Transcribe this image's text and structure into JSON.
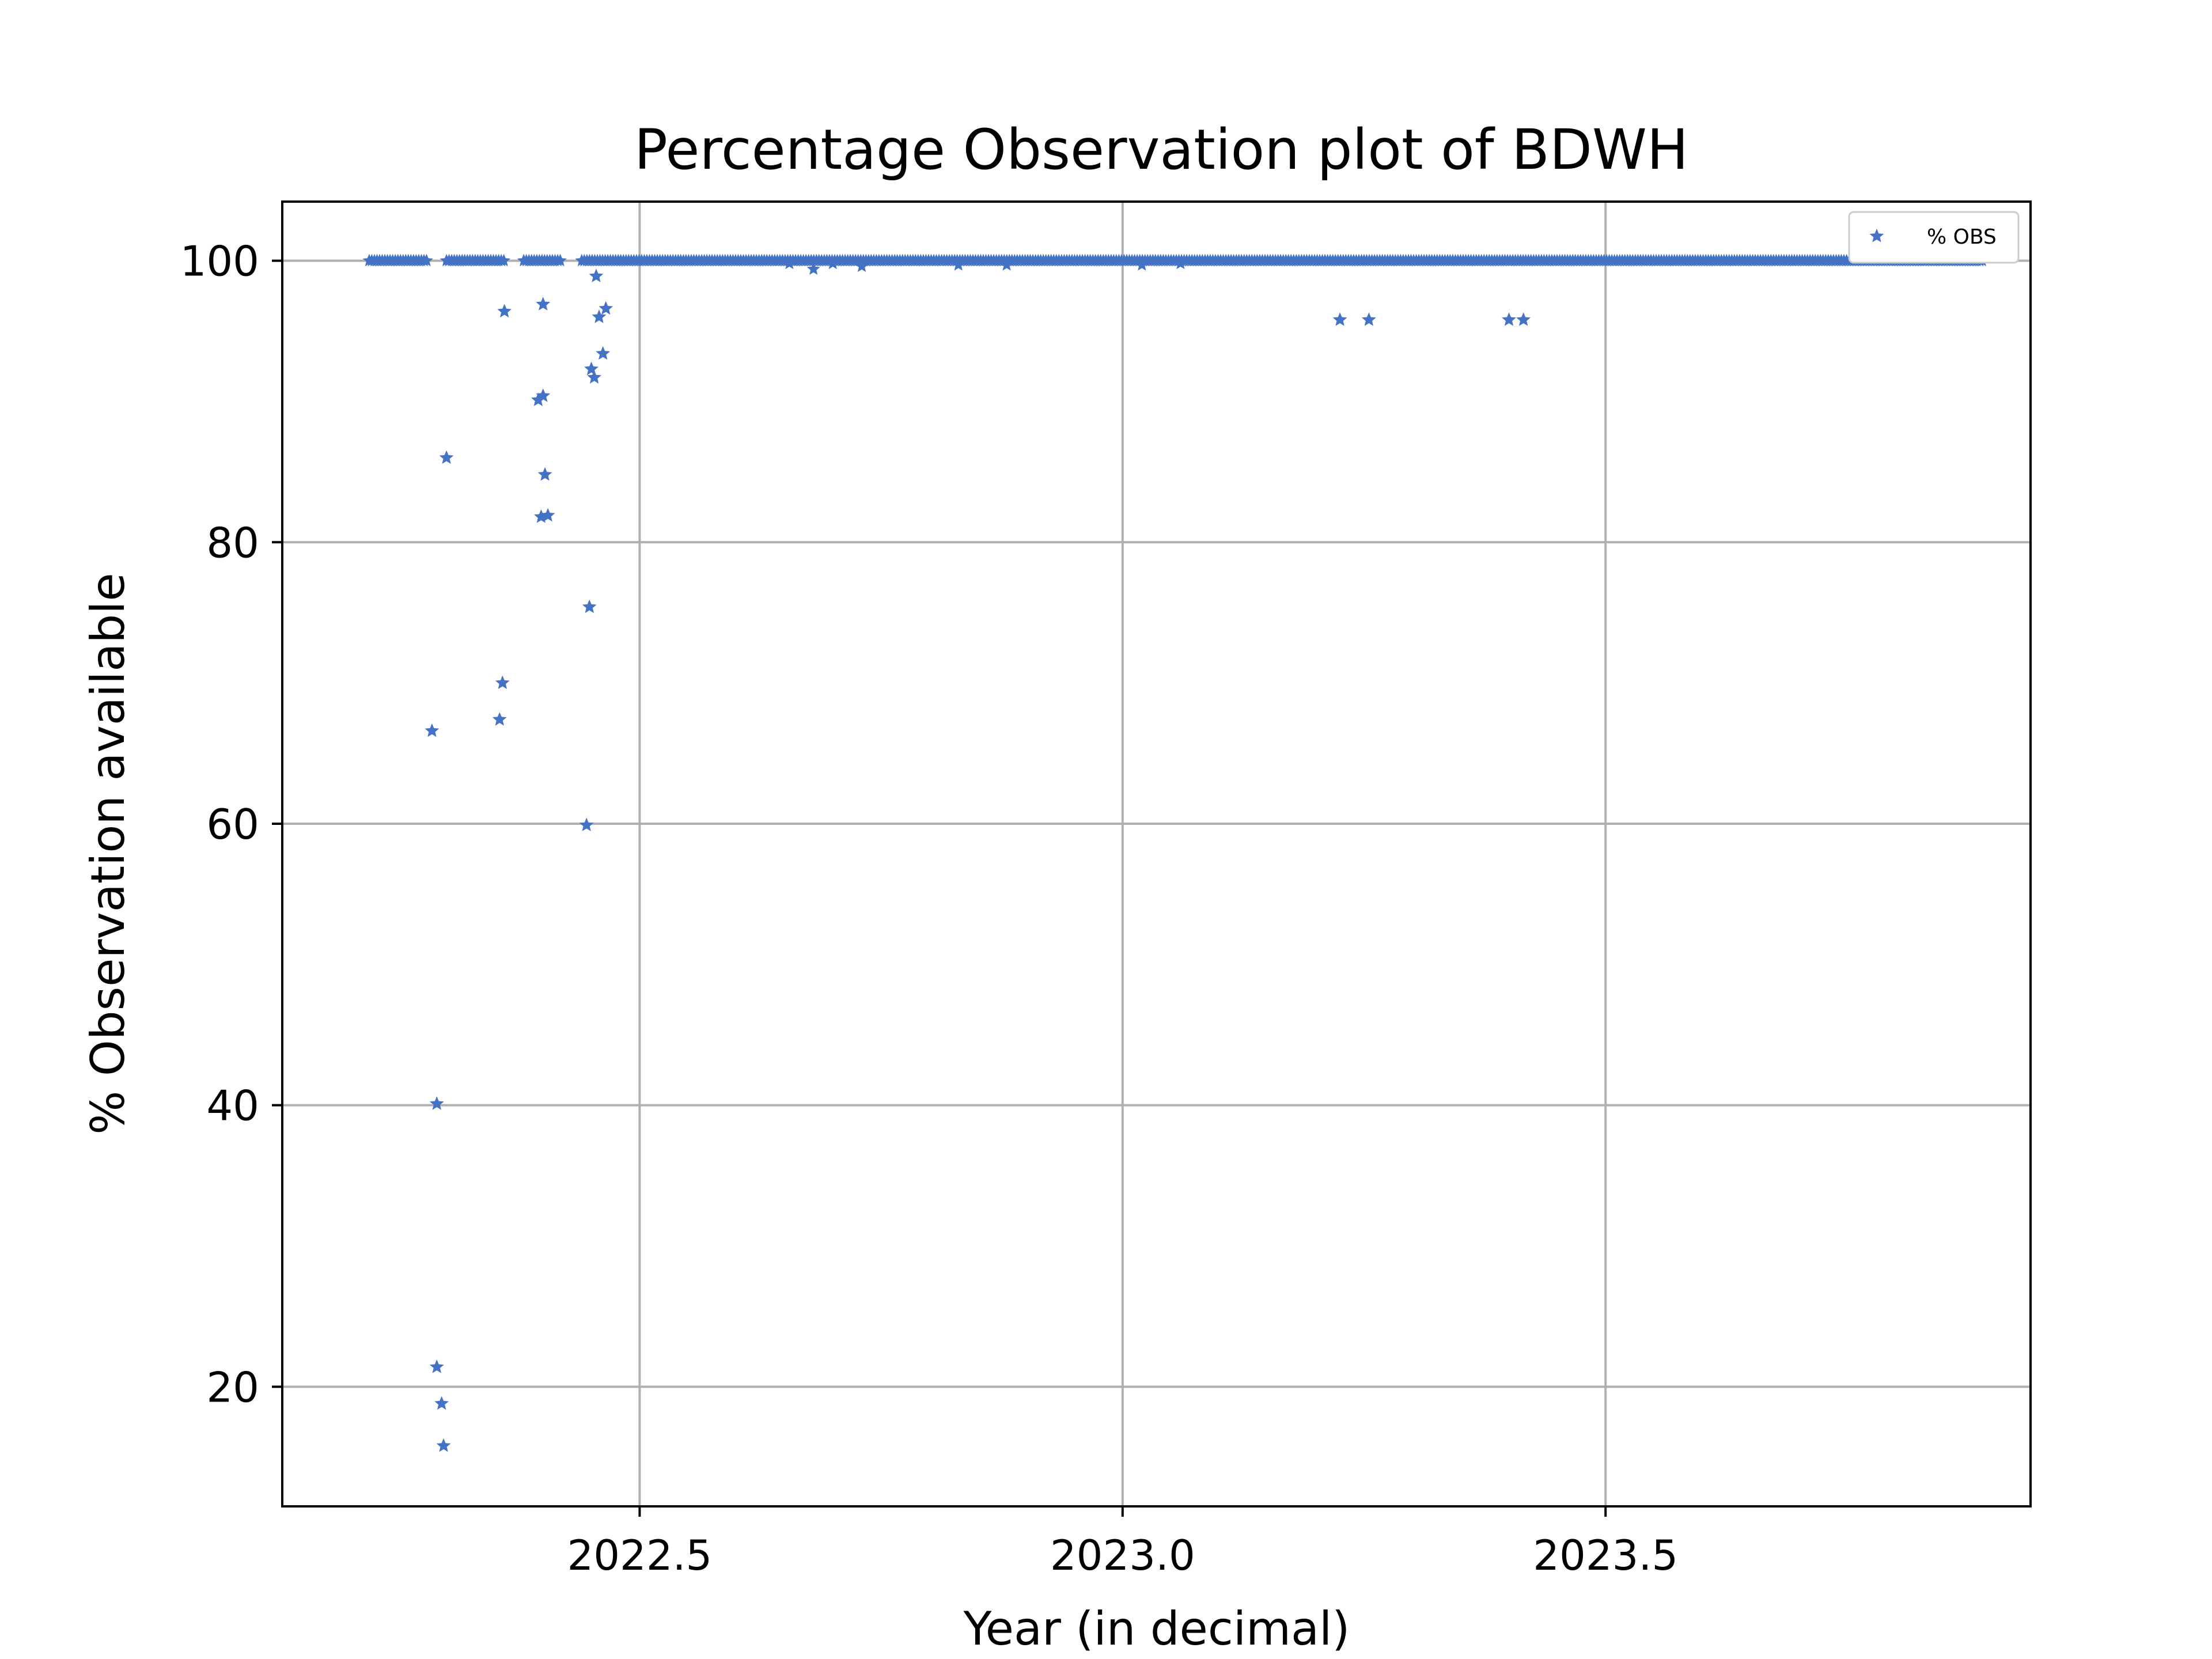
{
  "chart_data": {
    "type": "scatter",
    "title": "Percentage Observation plot of BDWH",
    "xlabel": "Year (in decimal)",
    "ylabel": "% Observation available",
    "xlim": [
      2022.13,
      2023.94
    ],
    "ylim": [
      11.5,
      104.2
    ],
    "xticks": [
      2022.5,
      2023.0,
      2023.5
    ],
    "xtick_labels": [
      "2022.5",
      "2023.0",
      "2023.5"
    ],
    "yticks": [
      20,
      40,
      60,
      80,
      100
    ],
    "ytick_labels": [
      "20",
      "40",
      "60",
      "80",
      "100"
    ],
    "grid": true,
    "legend_position": "top-right",
    "marker": "star",
    "series": [
      {
        "name": "% OBS",
        "color": "#4472c4",
        "dense_band": {
          "segments": [
            [
              2022.22,
              2022.28
            ],
            [
              2022.3,
              2022.36
            ],
            [
              2022.38,
              2022.42
            ],
            [
              2022.44,
              2023.89
            ]
          ],
          "y": 100,
          "step": 0.0027
        },
        "dips": [
          {
            "x": 2022.655,
            "y": 99.8
          },
          {
            "x": 2022.68,
            "y": 99.4
          },
          {
            "x": 2022.7,
            "y": 99.8
          },
          {
            "x": 2022.73,
            "y": 99.6
          },
          {
            "x": 2022.83,
            "y": 99.7
          },
          {
            "x": 2022.88,
            "y": 99.7
          },
          {
            "x": 2023.02,
            "y": 99.7
          },
          {
            "x": 2023.06,
            "y": 99.8
          }
        ],
        "points": [
          {
            "x": 2022.285,
            "y": 66.6
          },
          {
            "x": 2022.29,
            "y": 40.1
          },
          {
            "x": 2022.29,
            "y": 21.4
          },
          {
            "x": 2022.295,
            "y": 18.8
          },
          {
            "x": 2022.297,
            "y": 15.8
          },
          {
            "x": 2022.3,
            "y": 86.0
          },
          {
            "x": 2022.355,
            "y": 67.4
          },
          {
            "x": 2022.358,
            "y": 70.0
          },
          {
            "x": 2022.36,
            "y": 96.4
          },
          {
            "x": 2022.395,
            "y": 90.1
          },
          {
            "x": 2022.398,
            "y": 81.8
          },
          {
            "x": 2022.4,
            "y": 90.4
          },
          {
            "x": 2022.4,
            "y": 96.9
          },
          {
            "x": 2022.402,
            "y": 84.8
          },
          {
            "x": 2022.405,
            "y": 81.9
          },
          {
            "x": 2022.445,
            "y": 59.9
          },
          {
            "x": 2022.448,
            "y": 75.4
          },
          {
            "x": 2022.45,
            "y": 92.3
          },
          {
            "x": 2022.453,
            "y": 91.7
          },
          {
            "x": 2022.455,
            "y": 98.9
          },
          {
            "x": 2022.458,
            "y": 96.0
          },
          {
            "x": 2022.462,
            "y": 93.4
          },
          {
            "x": 2022.465,
            "y": 96.6
          },
          {
            "x": 2023.225,
            "y": 95.8
          },
          {
            "x": 2023.255,
            "y": 95.8
          },
          {
            "x": 2023.4,
            "y": 95.8
          },
          {
            "x": 2023.415,
            "y": 95.8
          }
        ]
      }
    ]
  }
}
